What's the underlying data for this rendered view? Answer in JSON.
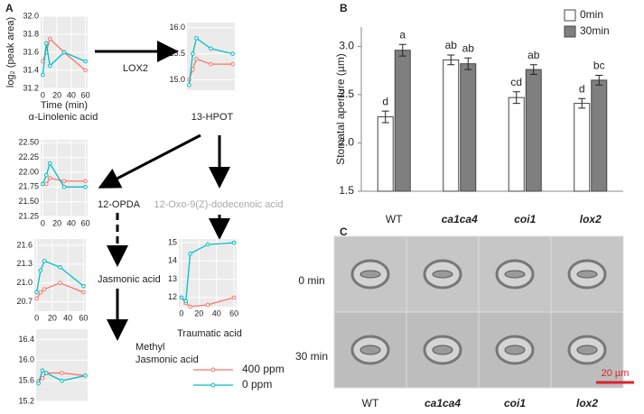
{
  "figure": {
    "panel_labels": [
      "A",
      "B",
      "C"
    ],
    "enzyme": "LOX2",
    "intermediate": "12-Oxo-9(Z)-dodecenoic acid"
  },
  "micrographs": {
    "rows": [
      "0 min",
      "30 min"
    ],
    "columns": [
      "WT",
      "ca1ca4",
      "coi1",
      "lox2"
    ],
    "scale": "20 µm"
  },
  "chart_data": [
    {
      "type": "line",
      "title": [
        "α-Linolenic acid"
      ],
      "xlabel": "Time (min)",
      "ylabel": "log₂ (peak area)",
      "x": [
        0,
        5,
        10,
        30,
        60
      ],
      "xlim": [
        -3,
        63
      ],
      "xticks": [
        0,
        20,
        40,
        60
      ],
      "ylim": [
        31.2,
        32.0
      ],
      "yticks": [
        31.2,
        31.4,
        31.6,
        31.8,
        {
          "value": 32.0,
          "label": "32.0"
        }
      ],
      "series": [
        {
          "name": "400 ppm",
          "color": "#f8766d",
          "values": [
            31.5,
            31.6,
            31.75,
            31.6,
            31.4
          ]
        },
        {
          "name": "0 ppm",
          "color": "#00bfc4",
          "values": [
            31.35,
            31.7,
            31.45,
            31.6,
            31.5
          ]
        }
      ]
    },
    {
      "type": "line",
      "title": [
        "13-HPOT"
      ],
      "x": [
        0,
        5,
        10,
        30,
        60
      ],
      "xlim": [
        -3,
        63
      ],
      "ylim": [
        14.8,
        16.1
      ],
      "yticks": [
        {
          "value": 15.0,
          "label": "15.0"
        },
        15.5,
        {
          "value": 16.0,
          "label": "16.0"
        }
      ],
      "series": [
        {
          "color": "#f8766d",
          "values": [
            15.0,
            15.2,
            15.4,
            15.3,
            15.3
          ]
        },
        {
          "color": "#00bfc4",
          "values": [
            14.9,
            15.5,
            15.8,
            15.6,
            15.5
          ]
        }
      ]
    },
    {
      "type": "line",
      "title": [
        "12-OPDA"
      ],
      "x": [
        0,
        5,
        10,
        30,
        60
      ],
      "xlim": [
        -3,
        63
      ],
      "xticks": [
        0,
        20,
        40,
        60
      ],
      "ylim": [
        21.25,
        22.55
      ],
      "yticks": [
        21.25,
        {
          "value": 21.5,
          "label": "21.50"
        },
        21.75,
        {
          "value": 22.0,
          "label": "22.00"
        },
        22.25,
        {
          "value": 22.5,
          "label": "22.50"
        }
      ],
      "series": [
        {
          "color": "#f8766d",
          "values": [
            21.8,
            21.8,
            21.9,
            21.85,
            21.85
          ]
        },
        {
          "color": "#00bfc4",
          "values": [
            21.8,
            21.95,
            22.15,
            21.75,
            21.75
          ]
        }
      ]
    },
    {
      "type": "line",
      "title": [
        "Jasmonic acid"
      ],
      "x": [
        0,
        5,
        10,
        30,
        60
      ],
      "xlim": [
        -3,
        63
      ],
      "xticks": [
        0,
        20,
        40,
        60
      ],
      "ylim": [
        20.55,
        21.7
      ],
      "yticks": [
        20.7,
        {
          "value": 21.0,
          "label": "21.0"
        },
        21.3,
        21.6
      ],
      "series": [
        {
          "color": "#f8766d",
          "values": [
            20.75,
            20.85,
            20.9,
            21.0,
            20.85
          ]
        },
        {
          "color": "#00bfc4",
          "values": [
            20.85,
            21.2,
            21.35,
            21.25,
            20.95
          ]
        }
      ]
    },
    {
      "type": "line",
      "title": [
        "Methyl",
        "Jasmonic acid"
      ],
      "x": [
        0,
        5,
        10,
        30,
        60
      ],
      "xlim": [
        -3,
        63
      ],
      "ylim": [
        15.2,
        16.6
      ],
      "yticks": [
        15.2,
        15.6,
        {
          "value": 16.0,
          "label": "16.0"
        },
        16.4
      ],
      "series": [
        {
          "color": "#f8766d",
          "values": [
            15.6,
            15.65,
            15.75,
            15.75,
            15.7
          ]
        },
        {
          "color": "#00bfc4",
          "values": [
            15.55,
            15.8,
            15.75,
            15.6,
            15.7
          ]
        }
      ]
    },
    {
      "type": "line",
      "title": [
        "Traumatic acid"
      ],
      "x": [
        0,
        5,
        10,
        30,
        60
      ],
      "xlim": [
        -3,
        63
      ],
      "xticks": [
        0,
        20,
        40,
        60
      ],
      "ylim": [
        11.5,
        15.2
      ],
      "yticks": [
        12,
        13,
        14,
        15
      ],
      "series": [
        {
          "color": "#f8766d",
          "values": [
            12.0,
            11.7,
            11.5,
            11.6,
            12.0
          ]
        },
        {
          "color": "#00bfc4",
          "values": [
            12.0,
            11.8,
            14.4,
            14.9,
            15.0
          ]
        }
      ]
    },
    {
      "type": "bar",
      "ylabel": "Stomatal aperture (µm)",
      "categories": [
        "WT",
        "ca1ca4",
        "coi1",
        "lox2"
      ],
      "ylim": [
        1.5,
        3.2
      ],
      "yticks": [
        1.5,
        {
          "value": 2.0,
          "label": "2.0"
        },
        2.5,
        {
          "value": 3.0,
          "label": "3.0"
        }
      ],
      "series": [
        {
          "name": "0min",
          "color": "#ffffff",
          "values": [
            2.27,
            2.86,
            2.47,
            2.41
          ],
          "errors": [
            0.06,
            0.05,
            0.06,
            0.05
          ],
          "letters": [
            "d",
            "ab",
            "cd",
            "d"
          ]
        },
        {
          "name": "30min",
          "color": "#7f7f7f",
          "values": [
            2.96,
            2.82,
            2.76,
            2.65
          ],
          "errors": [
            0.06,
            0.06,
            0.05,
            0.05
          ],
          "letters": [
            "a",
            "ab",
            "ab",
            "bc"
          ]
        }
      ]
    }
  ]
}
